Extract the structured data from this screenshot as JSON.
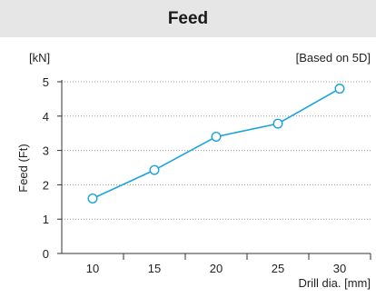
{
  "chart_data": {
    "type": "line",
    "title": "Feed",
    "y_unit_label": "[kN]",
    "note": "[Based on 5D]",
    "ylabel": "Feed (Ft)",
    "xlabel": "Drill dia. [mm]",
    "categories": [
      10,
      15,
      20,
      25,
      30
    ],
    "series": [
      {
        "name": "",
        "values": [
          1.6,
          2.43,
          3.4,
          3.78,
          4.8
        ]
      }
    ],
    "ylim": [
      0,
      5
    ],
    "yticks": [
      0,
      1,
      2,
      3,
      4,
      5
    ],
    "grid": "horizontal-dotted",
    "legend": "none",
    "line_color": "#1aa3db",
    "marker_fill": "#ffffff"
  }
}
